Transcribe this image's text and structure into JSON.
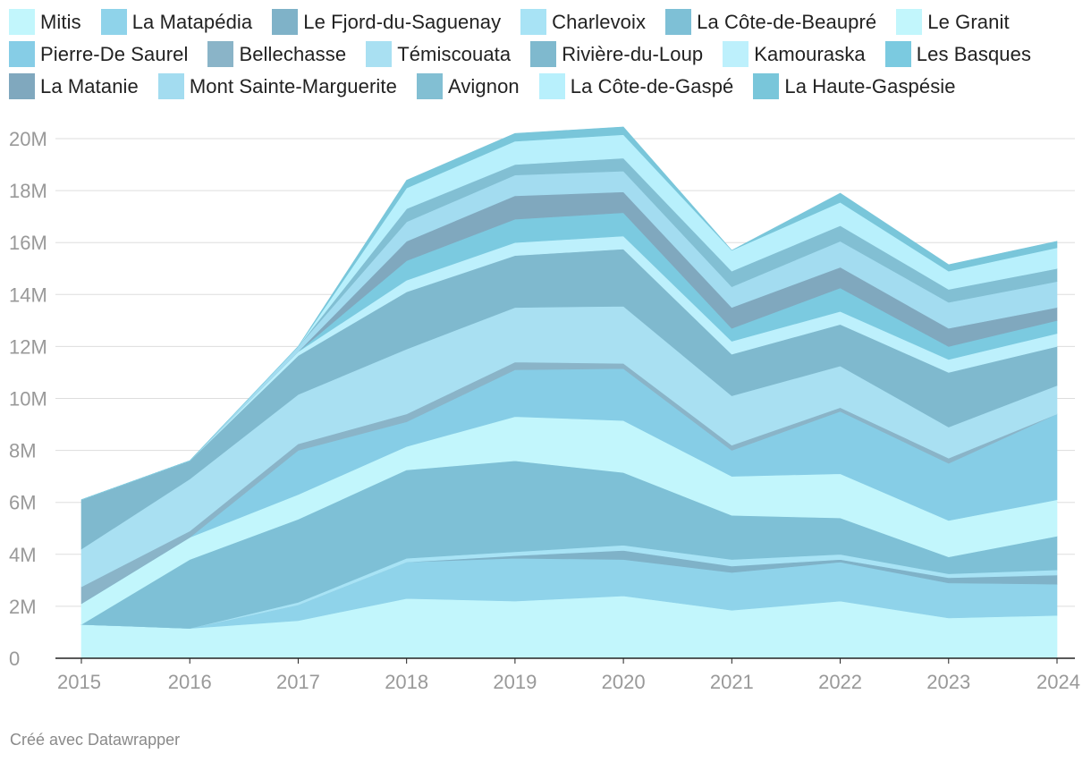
{
  "footer": {
    "credit": "Créé avec Datawrapper"
  },
  "chart_data": {
    "type": "area",
    "stacked": true,
    "title": "",
    "xlabel": "",
    "ylabel": "",
    "x": [
      "2015",
      "2016",
      "2017",
      "2018",
      "2019",
      "2020",
      "2021",
      "2022",
      "2023",
      "2024"
    ],
    "ylim": [
      0,
      20000000
    ],
    "yticks": [
      {
        "value": 0,
        "label": "0"
      },
      {
        "value": 2000000,
        "label": "2M"
      },
      {
        "value": 4000000,
        "label": "4M"
      },
      {
        "value": 6000000,
        "label": "6M"
      },
      {
        "value": 8000000,
        "label": "8M"
      },
      {
        "value": 10000000,
        "label": "10M"
      },
      {
        "value": 12000000,
        "label": "12M"
      },
      {
        "value": 14000000,
        "label": "14M"
      },
      {
        "value": 16000000,
        "label": "16M"
      },
      {
        "value": 18000000,
        "label": "18M"
      },
      {
        "value": 20000000,
        "label": "20M"
      }
    ],
    "grid": true,
    "legend_position": "top",
    "series": [
      {
        "name": "Mitis",
        "color": "#c2f6fc",
        "values": [
          1300000,
          1150000,
          1450000,
          2300000,
          2200000,
          2400000,
          1850000,
          2200000,
          1550000,
          1650000
        ]
      },
      {
        "name": "La Matapédia",
        "color": "#8fd3ea",
        "values": [
          0,
          0,
          600000,
          1400000,
          1650000,
          1400000,
          1450000,
          1500000,
          1350000,
          1200000
        ]
      },
      {
        "name": "Le Fjord-du-Saguenay",
        "color": "#7fb2c8",
        "values": [
          0,
          0,
          0,
          0,
          100000,
          350000,
          250000,
          100000,
          200000,
          350000
        ]
      },
      {
        "name": "Charlevoix",
        "color": "#a8e3f5",
        "values": [
          0,
          0,
          100000,
          150000,
          150000,
          200000,
          250000,
          200000,
          150000,
          200000
        ]
      },
      {
        "name": "La Côte-de-Beaupré",
        "color": "#7ec0d6",
        "values": [
          0,
          2650000,
          3200000,
          3400000,
          3500000,
          2800000,
          1700000,
          1400000,
          650000,
          1300000
        ]
      },
      {
        "name": "Le Granit",
        "color": "#c2f6fc",
        "values": [
          800000,
          850000,
          950000,
          900000,
          1700000,
          2000000,
          1500000,
          1700000,
          1400000,
          1400000
        ]
      },
      {
        "name": "Pierre-De Saurel",
        "color": "#86cde6",
        "values": [
          0,
          0,
          1700000,
          950000,
          1800000,
          2000000,
          1000000,
          2400000,
          2200000,
          3300000
        ]
      },
      {
        "name": "Bellechasse",
        "color": "#8ab4c8",
        "values": [
          650000,
          250000,
          250000,
          300000,
          300000,
          200000,
          200000,
          150000,
          200000,
          0
        ]
      },
      {
        "name": "Témiscouata",
        "color": "#a9e0f2",
        "values": [
          1450000,
          2000000,
          1900000,
          2500000,
          2100000,
          2200000,
          1900000,
          1600000,
          1200000,
          1100000
        ]
      },
      {
        "name": "Rivière-du-Loup",
        "color": "#7fb9ce",
        "values": [
          1900000,
          700000,
          1500000,
          2200000,
          2000000,
          2200000,
          1600000,
          1600000,
          2100000,
          1500000
        ]
      },
      {
        "name": "Kamouraska",
        "color": "#bdf0fc",
        "values": [
          0,
          0,
          150000,
          450000,
          500000,
          500000,
          500000,
          500000,
          500000,
          500000
        ]
      },
      {
        "name": "Les Basques",
        "color": "#7bcae0",
        "values": [
          0,
          0,
          0,
          750000,
          900000,
          900000,
          500000,
          900000,
          500000,
          500000
        ]
      },
      {
        "name": "La Matanie",
        "color": "#80a8be",
        "values": [
          0,
          0,
          0,
          750000,
          900000,
          800000,
          800000,
          800000,
          700000,
          500000
        ]
      },
      {
        "name": "Mont Sainte-Marguerite",
        "color": "#a3dcf0",
        "values": [
          0,
          0,
          200000,
          750000,
          800000,
          800000,
          800000,
          1000000,
          1000000,
          1000000
        ]
      },
      {
        "name": "Avignon",
        "color": "#82bfd3",
        "values": [
          0,
          0,
          0,
          500000,
          400000,
          500000,
          600000,
          600000,
          500000,
          500000
        ]
      },
      {
        "name": "La Côte-de-Gaspé",
        "color": "#b8f0fc",
        "values": [
          0,
          0,
          0,
          800000,
          900000,
          900000,
          800000,
          900000,
          700000,
          800000
        ]
      },
      {
        "name": "La Haute-Gaspésie",
        "color": "#79c6da",
        "values": [
          0,
          0,
          0,
          300000,
          300000,
          300000,
          0,
          350000,
          250000,
          250000
        ]
      }
    ]
  }
}
